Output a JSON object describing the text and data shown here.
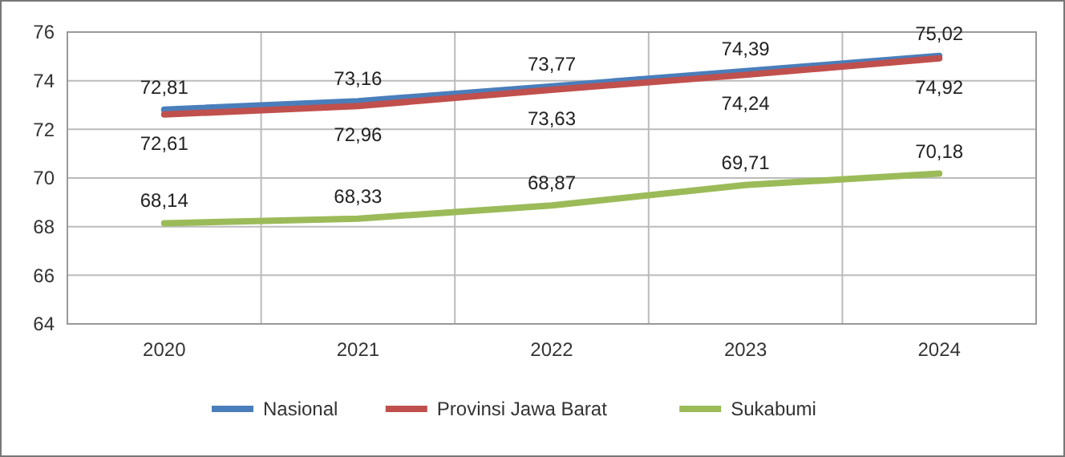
{
  "chart_data": {
    "type": "line",
    "categories": [
      "2020",
      "2021",
      "2022",
      "2023",
      "2024"
    ],
    "series": [
      {
        "name": "Nasional",
        "color": "#4a7ebb",
        "values": [
          72.81,
          73.16,
          73.77,
          74.39,
          75.02
        ],
        "value_labels": [
          "72,81",
          "73,16",
          "73,77",
          "74,39",
          "75,02"
        ]
      },
      {
        "name": "Provinsi Jawa Barat",
        "color": "#c0504d",
        "values": [
          72.61,
          72.96,
          73.63,
          74.24,
          74.92
        ],
        "value_labels": [
          "72,61",
          "72,96",
          "73,63",
          "74,24",
          "74,92"
        ]
      },
      {
        "name": "Sukabumi",
        "color": "#9bbb59",
        "values": [
          68.14,
          68.33,
          68.87,
          69.71,
          70.18
        ],
        "value_labels": [
          "68,14",
          "68,33",
          "68,87",
          "69,71",
          "70,18"
        ]
      }
    ],
    "ylim": [
      64,
      76
    ],
    "yticks": [
      64,
      66,
      68,
      70,
      72,
      74,
      76
    ],
    "grid": true,
    "legend": "bottom",
    "marker": "none",
    "line_style": "solid"
  }
}
